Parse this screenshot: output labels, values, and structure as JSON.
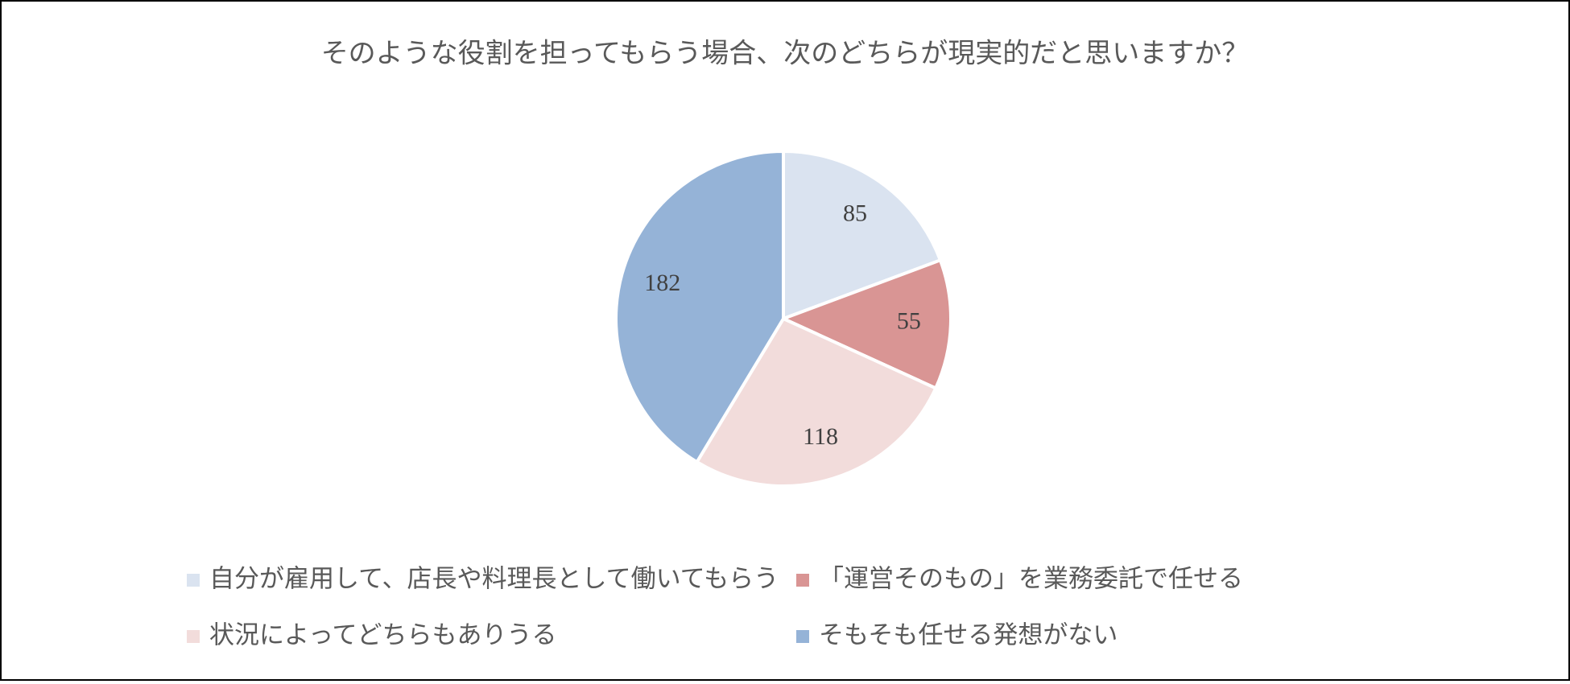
{
  "chart_data": {
    "type": "pie",
    "title": "そのような役割を担ってもらう場合、次のどちらが現実的だと思いますか？",
    "categories": [
      "自分が雇用して、店長や料理長として働いてもらう",
      "「運営そのもの」を業務委託で任せる",
      "状況によってどちらもありうる",
      "そもそも任せる発想がない"
    ],
    "values": [
      85,
      55,
      118,
      182
    ],
    "colors": [
      "#dae3f0",
      "#d99594",
      "#f2dcdb",
      "#95b3d7"
    ]
  }
}
